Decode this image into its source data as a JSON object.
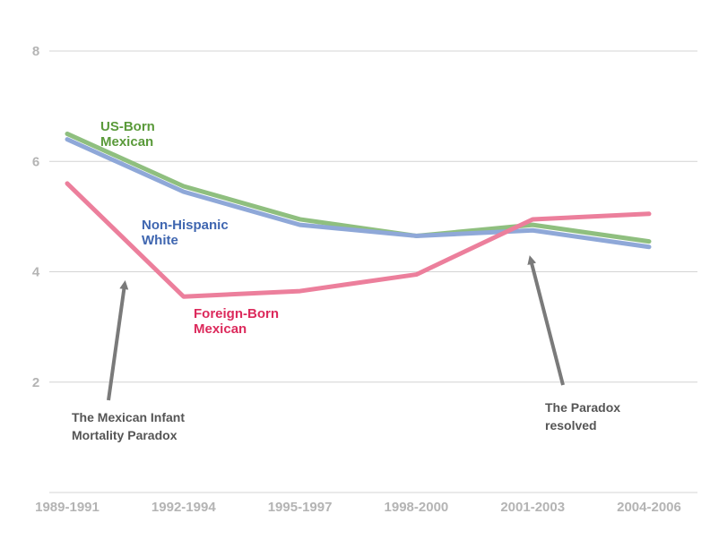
{
  "chart_data": {
    "type": "line",
    "title": "",
    "xlabel": "",
    "ylabel": "",
    "categories": [
      "1989-1991",
      "1992-1994",
      "1995-1997",
      "1998-2000",
      "2001-2003",
      "2004-2006"
    ],
    "ylim": [
      0,
      8
    ],
    "yticks": [
      "2",
      "4",
      "6",
      "8"
    ],
    "grid": true,
    "series": [
      {
        "name_lines": [
          "US-Born",
          "Mexican"
        ],
        "color": "#8fbf7f",
        "label_color": "#5a9a3a",
        "values": [
          6.5,
          5.55,
          4.95,
          4.65,
          4.85,
          4.55
        ]
      },
      {
        "name_lines": [
          "Non-Hispanic",
          "White"
        ],
        "color": "#8fa8d8",
        "label_color": "#3f66b0",
        "values": [
          6.4,
          5.45,
          4.85,
          4.65,
          4.75,
          4.45
        ]
      },
      {
        "name_lines": [
          "Foreign-Born",
          "Mexican"
        ],
        "color": "#ec7f9c",
        "label_color": "#dc2a5c",
        "values": [
          5.6,
          3.55,
          3.65,
          3.95,
          4.95,
          5.05
        ]
      }
    ],
    "annotations": [
      {
        "lines": [
          "The Mexican Infant",
          "Mortality Paradox"
        ]
      },
      {
        "lines": [
          "The Paradox",
          "resolved"
        ]
      }
    ]
  }
}
